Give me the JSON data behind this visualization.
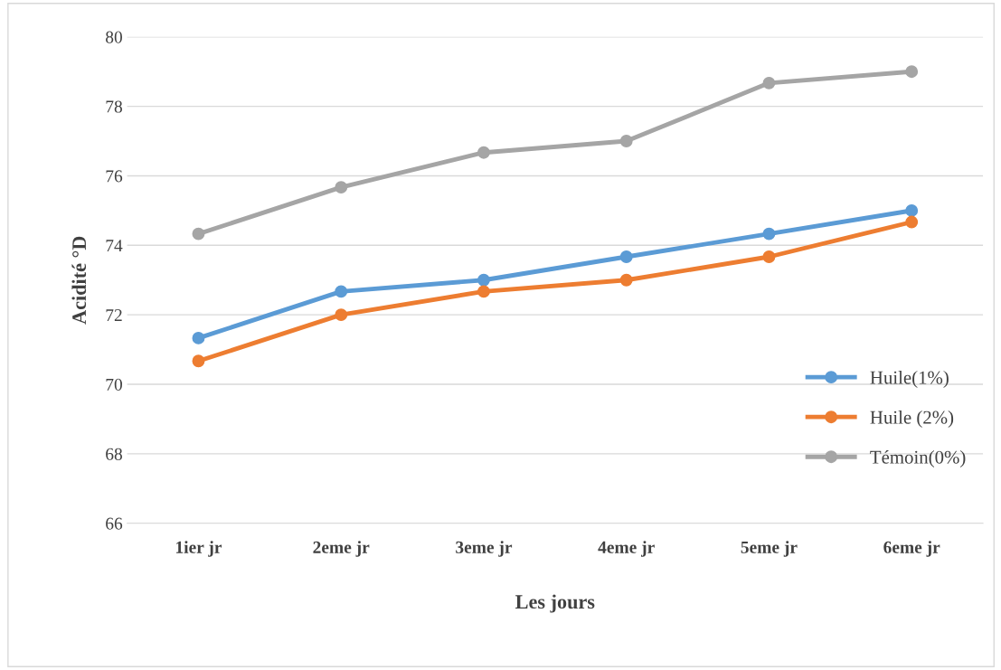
{
  "chart_data": {
    "type": "line",
    "xlabel": "Les jours",
    "ylabel": "Acidité °D",
    "categories": [
      "1ier jr",
      "2eme jr",
      "3eme jr",
      "4eme jr",
      "5eme jr",
      "6eme jr"
    ],
    "series": [
      {
        "name": "Huile(1%)",
        "color": "#5b9bd5",
        "values": [
          71.33,
          72.67,
          73.0,
          73.67,
          74.33,
          75.0
        ]
      },
      {
        "name": "Huile (2%)",
        "color": "#ed7d31",
        "values": [
          70.67,
          72.0,
          72.67,
          73.0,
          73.67,
          74.67
        ]
      },
      {
        "name": "Témoin(0%)",
        "color": "#a5a5a5",
        "values": [
          74.33,
          75.67,
          76.67,
          77.0,
          78.67,
          79.0
        ]
      }
    ],
    "ylim": [
      66,
      80
    ],
    "yticks": [
      66,
      68,
      70,
      72,
      74,
      76,
      78,
      80
    ],
    "grid": "y",
    "legend": "lower right",
    "marker": "circle",
    "line_style": "solid"
  }
}
